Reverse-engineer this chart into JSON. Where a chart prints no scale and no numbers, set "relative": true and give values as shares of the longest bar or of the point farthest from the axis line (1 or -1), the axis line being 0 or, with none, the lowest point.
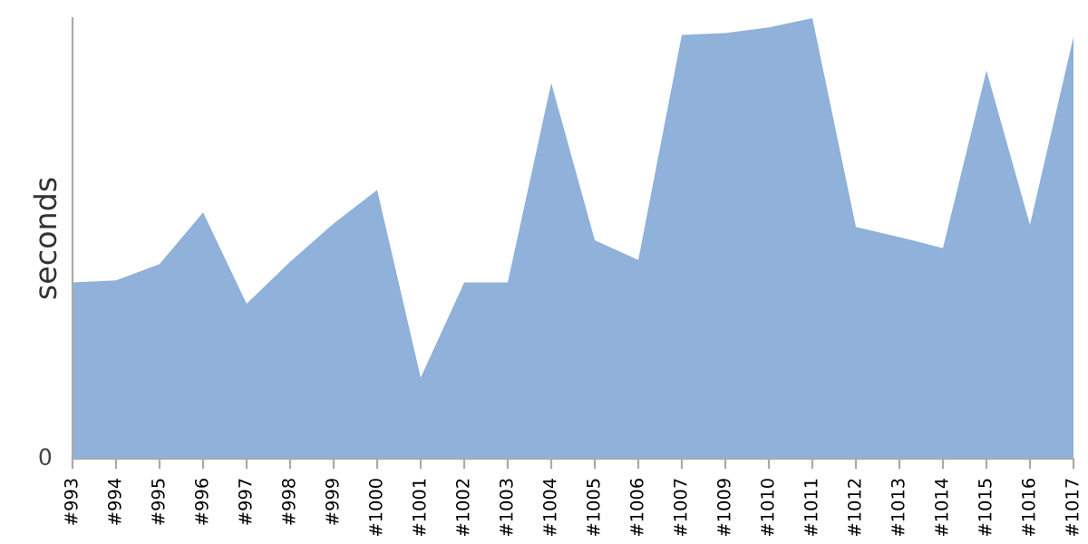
{
  "chart_data": {
    "type": "area",
    "ylabel": "seconds",
    "relative": true,
    "annotations": [
      "0"
    ],
    "categories": [
      "#993",
      "#994",
      "#995",
      "#996",
      "#997",
      "#998",
      "#999",
      "#1000",
      "#1001",
      "#1002",
      "#1003",
      "#1004",
      "#1005",
      "#1006",
      "#1007",
      "#1009",
      "#1010",
      "#1011",
      "#1012",
      "#1013",
      "#1014",
      "#1015",
      "#1016",
      "#1017"
    ],
    "series": [
      {
        "color": "#8fb1da",
        "values": [
          0.4,
          0.405,
          0.442,
          0.559,
          0.352,
          0.447,
          0.534,
          0.61,
          0.184,
          0.4,
          0.4,
          0.853,
          0.496,
          0.451,
          0.962,
          0.966,
          0.979,
          1,
          0.526,
          0.503,
          0.478,
          0.881,
          0.531,
          0.958
        ]
      }
    ],
    "grid": false,
    "legend": false
  }
}
